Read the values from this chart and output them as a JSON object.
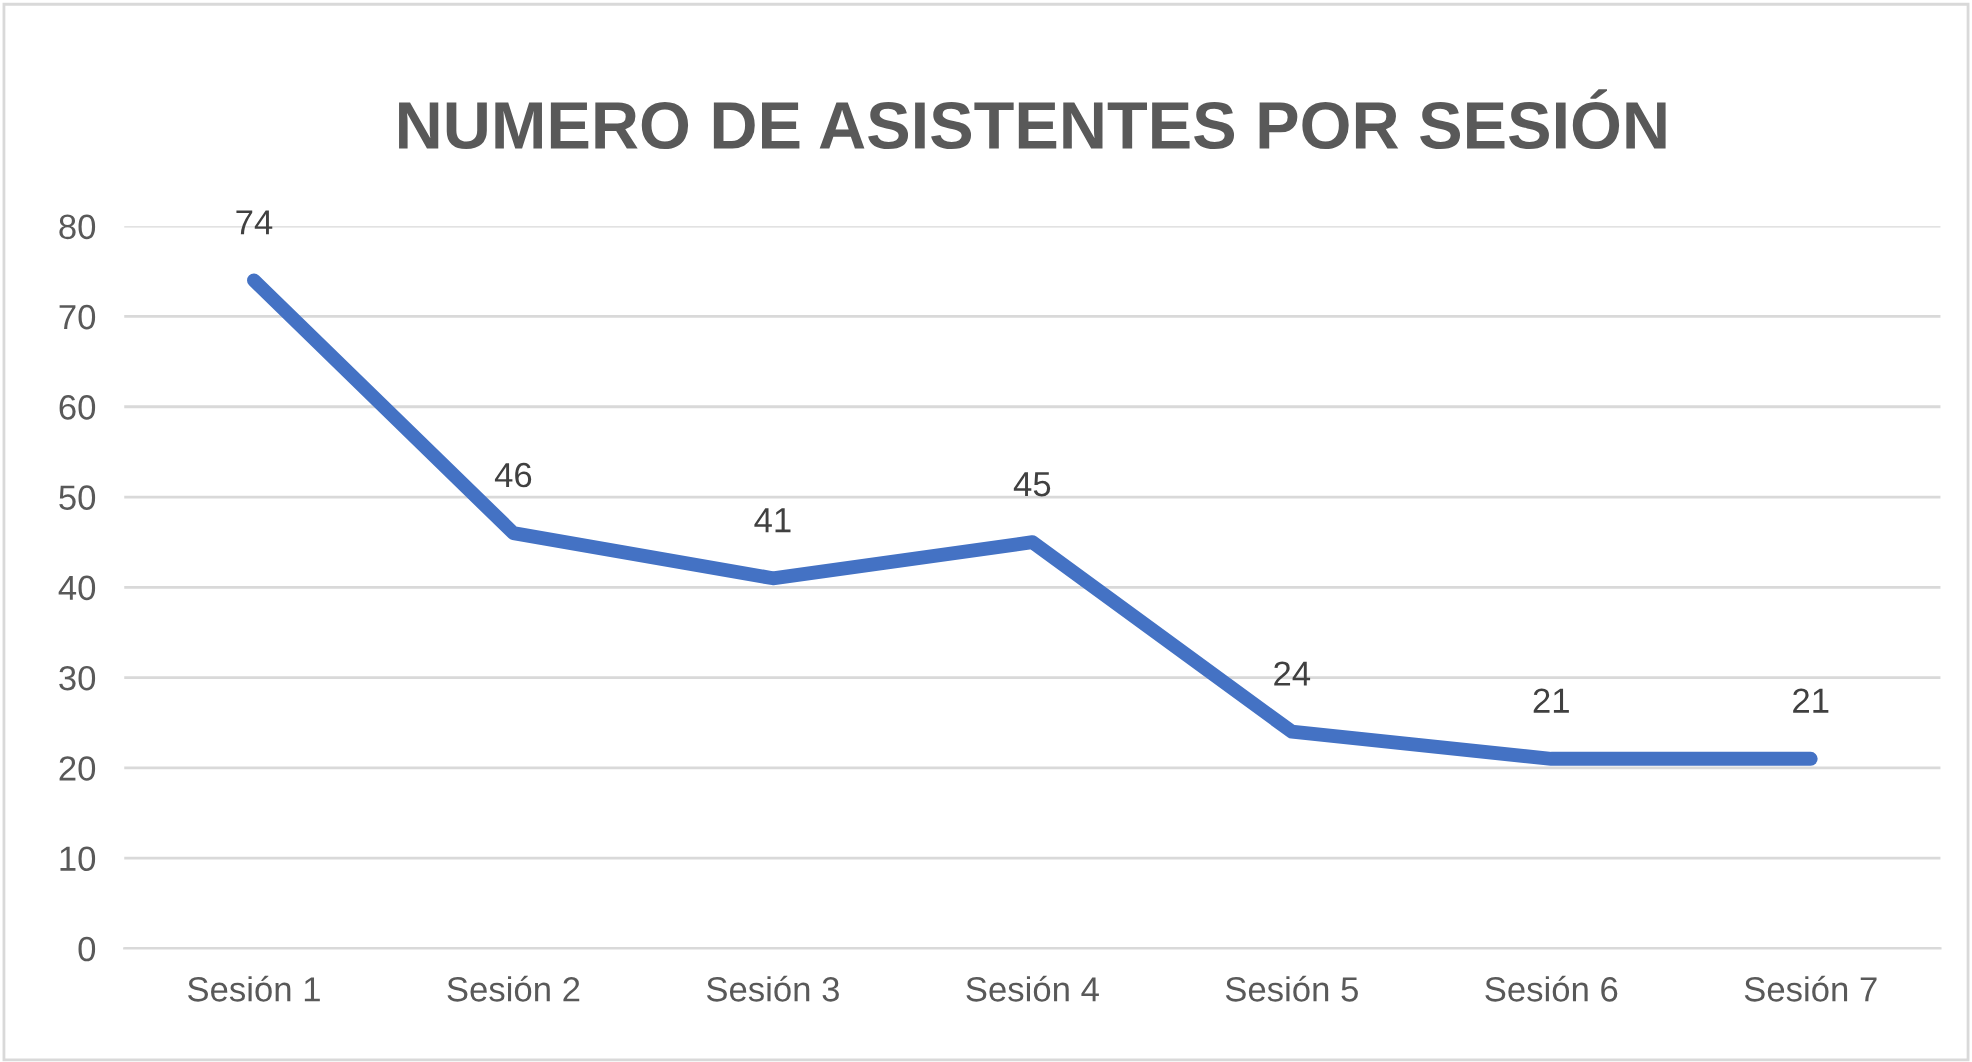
{
  "chart_data": {
    "type": "line",
    "title": "NUMERO DE ASISTENTES POR SESIÓN",
    "categories": [
      "Sesión 1",
      "Sesión 2",
      "Sesión 3",
      "Sesión 4",
      "Sesión 5",
      "Sesión 6",
      "Sesión 7"
    ],
    "series": [
      {
        "color": "#4472c4",
        "values": [
          74,
          46,
          41,
          45,
          24,
          21,
          21
        ]
      }
    ],
    "ylim": [
      0,
      80
    ],
    "yticks": [
      0,
      10,
      20,
      30,
      40,
      50,
      60,
      70,
      80
    ],
    "grid": "y",
    "data_labels": true,
    "marker": "none",
    "line_style": "solid",
    "legend": false
  }
}
